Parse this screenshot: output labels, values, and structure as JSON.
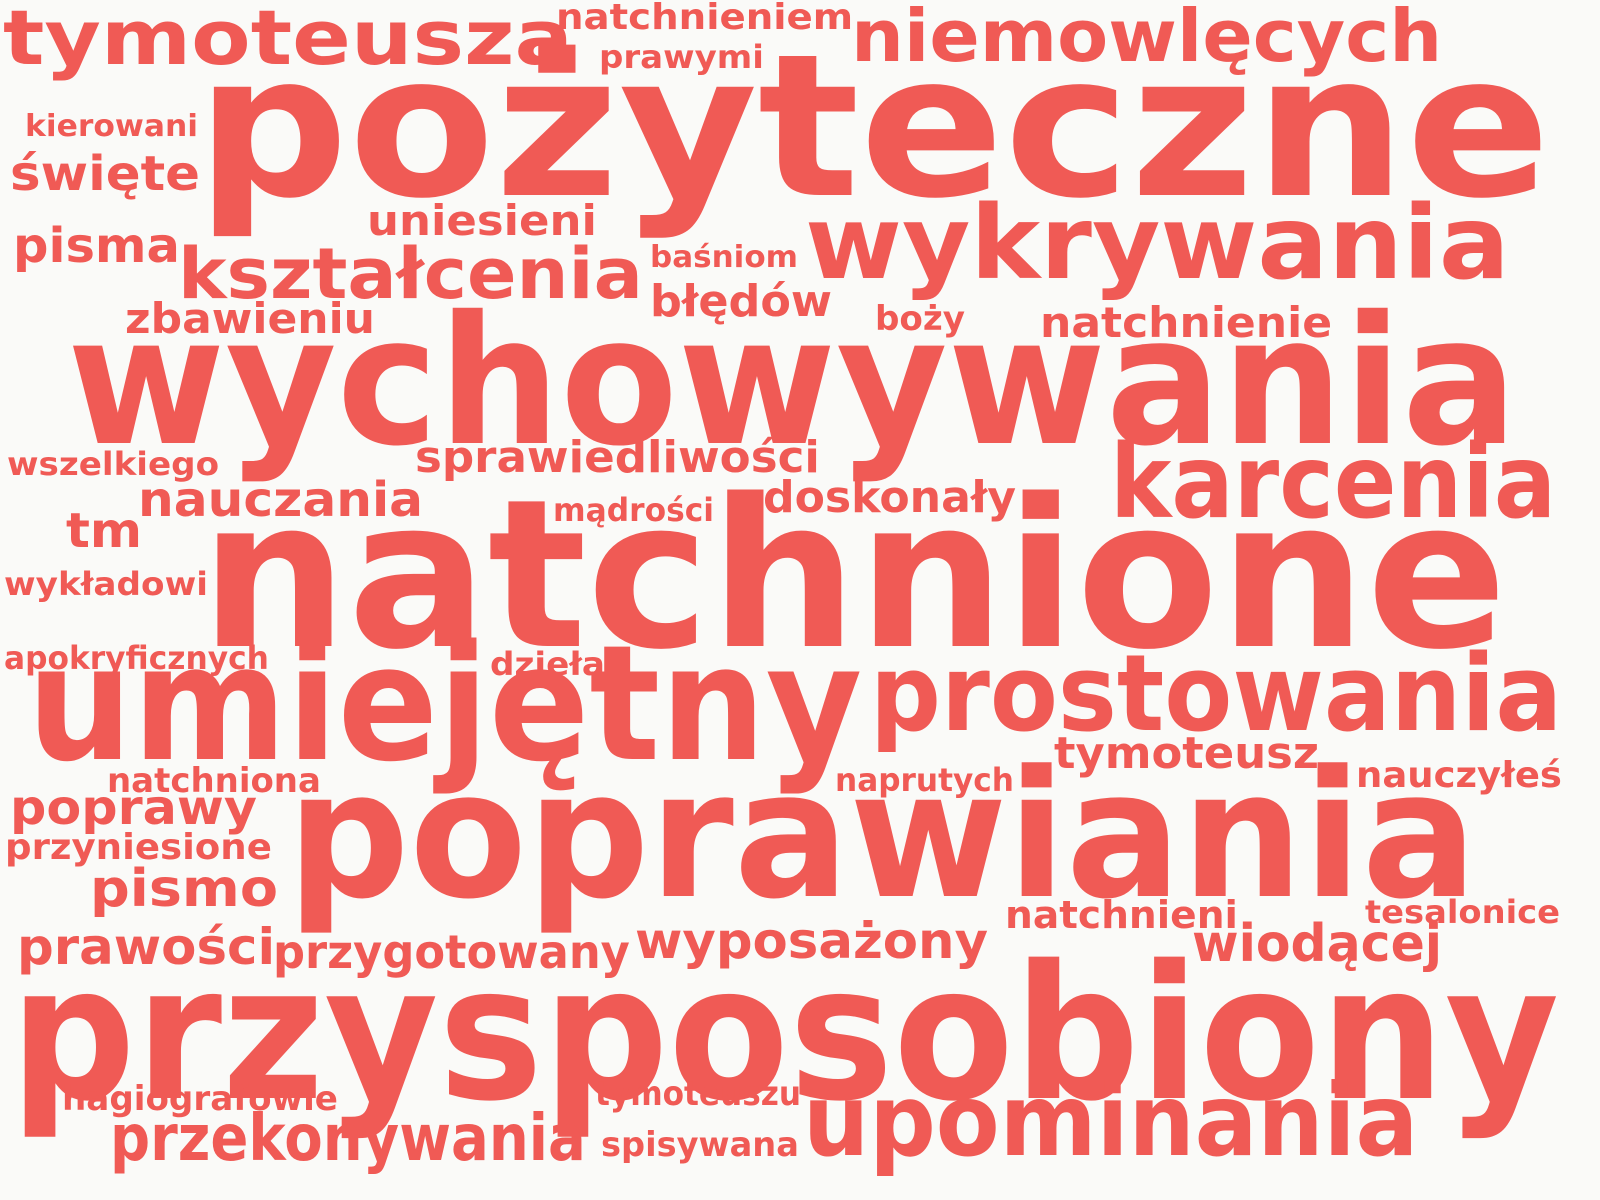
{
  "colors": {
    "word": "#f05a55",
    "background": "#fafaf8"
  },
  "words": [
    {
      "key": "tymoteusza",
      "text": "tymoteusza"
    },
    {
      "key": "natchnieniem",
      "text": "natchnieniem"
    },
    {
      "key": "niemowlecych",
      "text": "niemowlęcych"
    },
    {
      "key": "prawymi",
      "text": "prawymi"
    },
    {
      "key": "pozyteczne",
      "text": "pożyteczne"
    },
    {
      "key": "kierowani",
      "text": "kierowani"
    },
    {
      "key": "swiete",
      "text": "święte"
    },
    {
      "key": "uniesieni",
      "text": "uniesieni"
    },
    {
      "key": "pisma",
      "text": "pisma"
    },
    {
      "key": "wykrywania",
      "text": "wykrywania"
    },
    {
      "key": "ksztalcenia",
      "text": "kształcenia"
    },
    {
      "key": "basniom",
      "text": "baśniom"
    },
    {
      "key": "bledow",
      "text": "błędów"
    },
    {
      "key": "zbawieniu",
      "text": "zbawieniu"
    },
    {
      "key": "bozy",
      "text": "boży"
    },
    {
      "key": "natchnienie",
      "text": "natchnienie"
    },
    {
      "key": "wychowywania",
      "text": "wychowywania"
    },
    {
      "key": "wszelkiego",
      "text": "wszelkiego"
    },
    {
      "key": "sprawiedliwosci",
      "text": "sprawiedliwości"
    },
    {
      "key": "karcenia",
      "text": "karcenia"
    },
    {
      "key": "nauczania",
      "text": "nauczania"
    },
    {
      "key": "doskonaly",
      "text": "doskonały"
    },
    {
      "key": "madrosci",
      "text": "mądrości"
    },
    {
      "key": "tm",
      "text": "tm"
    },
    {
      "key": "natchnione",
      "text": "natchnione"
    },
    {
      "key": "wykladowi",
      "text": "wykładowi"
    },
    {
      "key": "apokryficznych",
      "text": "apokryficznych"
    },
    {
      "key": "dziela",
      "text": "dzieła"
    },
    {
      "key": "umiejetny",
      "text": "umiejętny"
    },
    {
      "key": "prostowania",
      "text": "prostowania"
    },
    {
      "key": "tymoteusz",
      "text": "tymoteusz"
    },
    {
      "key": "natchniona",
      "text": "natchniona"
    },
    {
      "key": "naprutych",
      "text": "naprutych"
    },
    {
      "key": "nauczyles",
      "text": "nauczyłeś"
    },
    {
      "key": "poprawy",
      "text": "poprawy"
    },
    {
      "key": "poprawiania",
      "text": "poprawiania"
    },
    {
      "key": "przyniesione",
      "text": "przyniesione"
    },
    {
      "key": "pismo",
      "text": "pismo"
    },
    {
      "key": "natchnieni",
      "text": "natchnieni"
    },
    {
      "key": "tesalonice",
      "text": "tesalonice"
    },
    {
      "key": "prawosci",
      "text": "prawości"
    },
    {
      "key": "przygotowany",
      "text": "przygotowany"
    },
    {
      "key": "wyposazony",
      "text": "wyposażony"
    },
    {
      "key": "wiodacej",
      "text": "wiodącej"
    },
    {
      "key": "przysposobiony",
      "text": "przysposobiony"
    },
    {
      "key": "hagiografowie",
      "text": "hagiografowie"
    },
    {
      "key": "tymoteuszu",
      "text": "tymoteuszu"
    },
    {
      "key": "upominania",
      "text": "upominania"
    },
    {
      "key": "przekonywania",
      "text": "przekonywania"
    },
    {
      "key": "spisywana",
      "text": "spisywana"
    }
  ]
}
